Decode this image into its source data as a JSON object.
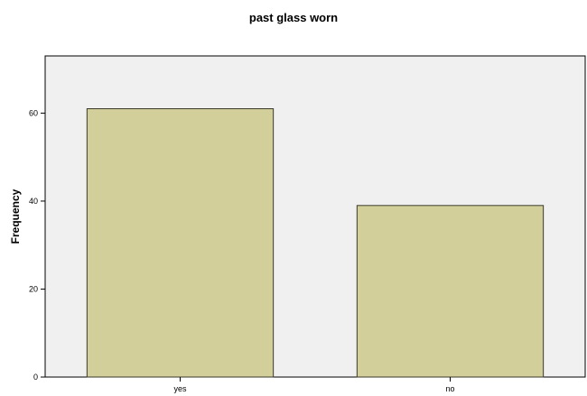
{
  "chart_data": {
    "type": "bar",
    "title": "past glass worn",
    "xlabel": "",
    "ylabel": "Frequency",
    "categories": [
      "yes",
      "no"
    ],
    "values": [
      61,
      39
    ],
    "ylim": [
      0,
      73
    ],
    "yticks": [
      0,
      20,
      40,
      60
    ],
    "grid": false,
    "colors": {
      "bar_fill": "#d3cf9a",
      "bar_stroke": "#3a3a2a",
      "plot_background": "#f0f0f0",
      "axis": "#000000"
    }
  }
}
